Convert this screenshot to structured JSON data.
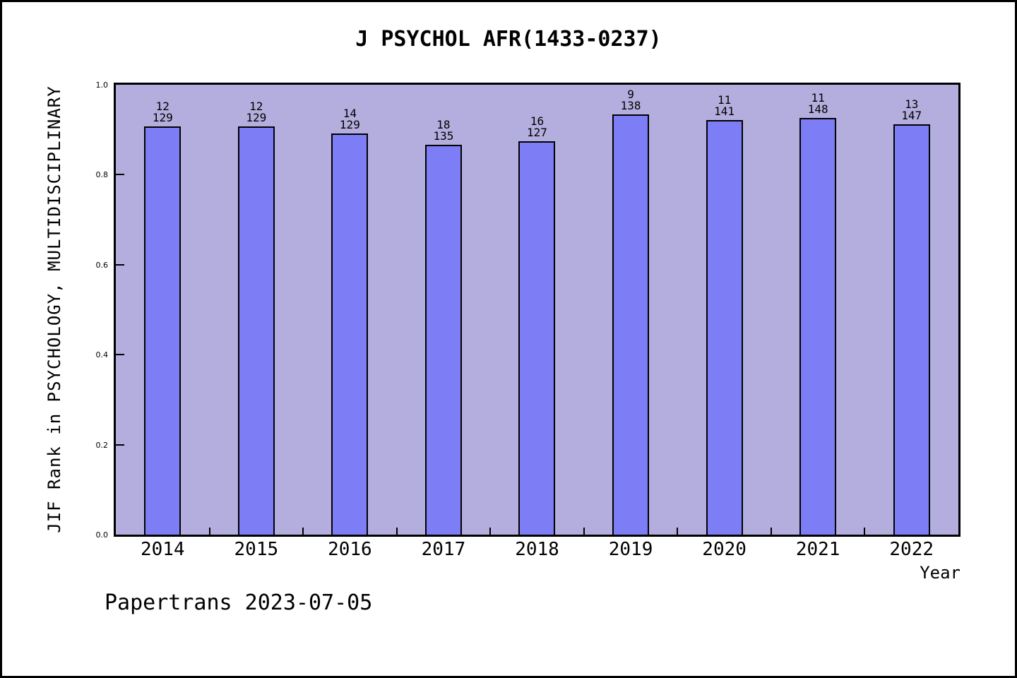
{
  "figure": {
    "footer": "Papertrans 2023-07-05"
  },
  "chart_data": {
    "type": "bar",
    "title": "J PSYCHOL AFR(1433-0237)",
    "xlabel": "Year",
    "ylabel": "JIF Rank in PSYCHOLOGY, MULTIDISCIPLINARY",
    "ylim": [
      0.0,
      1.0
    ],
    "yticks": [
      "0.0",
      "0.2",
      "0.4",
      "0.6",
      "0.8",
      "1.0"
    ],
    "grid": false,
    "legend": false,
    "categories": [
      "2014",
      "2015",
      "2016",
      "2017",
      "2018",
      "2019",
      "2020",
      "2021",
      "2022"
    ],
    "series": [
      {
        "name": "rank",
        "values": [
          12,
          12,
          14,
          18,
          16,
          9,
          11,
          11,
          13
        ]
      },
      {
        "name": "total_in_category",
        "values": [
          129,
          129,
          129,
          135,
          127,
          138,
          141,
          148,
          147
        ]
      }
    ],
    "bar_height_fractions": [
      0.907,
      0.907,
      0.8915,
      0.8667,
      0.874,
      0.9348,
      0.922,
      0.9257,
      0.9116
    ],
    "bar_annotations": [
      "12/129",
      "12/129",
      "14/129",
      "18/135",
      "16/127",
      "9/138",
      "11/141",
      "11/148",
      "13/147"
    ],
    "colors": {
      "bar_fill": "#7d7df5",
      "bar_edge": "#000000",
      "plot_background": "#b3aedd",
      "figure_background": "#ffffff",
      "text": "#000000"
    }
  }
}
